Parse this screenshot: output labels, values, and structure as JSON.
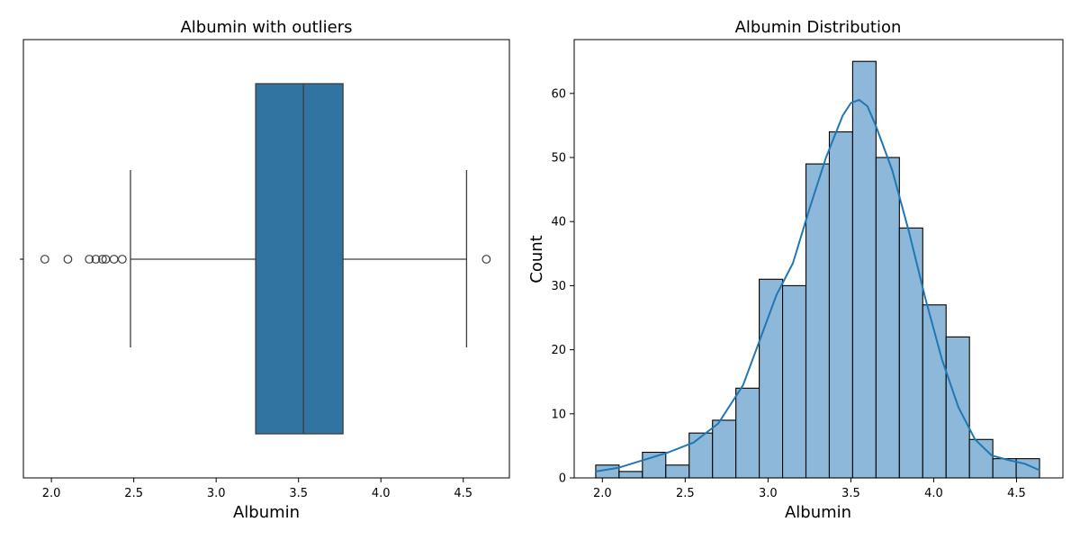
{
  "chart_data": [
    {
      "type": "box",
      "title": "Albumin with outliers",
      "xlabel": "Albumin",
      "ylabel": "",
      "xlim": [
        1.83,
        4.78
      ],
      "xticks": [
        2.0,
        2.5,
        3.0,
        3.5,
        4.0,
        4.5
      ],
      "xtick_labels": [
        "2.0",
        "2.5",
        "3.0",
        "3.5",
        "4.0",
        "4.5"
      ],
      "grid": false,
      "box": {
        "whisker_low": 2.48,
        "q1": 3.24,
        "median": 3.53,
        "q3": 3.77,
        "whisker_high": 4.52,
        "color": "#3274a1"
      },
      "outliers": [
        1.96,
        2.1,
        2.23,
        2.27,
        2.31,
        2.33,
        2.38,
        2.43,
        4.64
      ]
    },
    {
      "type": "histogram",
      "title": "Albumin Distribution",
      "xlabel": "Albumin",
      "ylabel": "Count",
      "xlim": [
        1.83,
        4.78
      ],
      "ylim": [
        0,
        68.4
      ],
      "xticks": [
        2.0,
        2.5,
        3.0,
        3.5,
        4.0,
        4.5
      ],
      "xtick_labels": [
        "2.0",
        "2.5",
        "3.0",
        "3.5",
        "4.0",
        "4.5"
      ],
      "yticks": [
        0,
        10,
        20,
        30,
        40,
        50,
        60
      ],
      "ytick_labels": [
        "0",
        "10",
        "20",
        "30",
        "40",
        "50",
        "60"
      ],
      "grid": false,
      "bar_color": "#8db8da",
      "line_color": "#1f77b4",
      "bin_edges": [
        1.96,
        2.101,
        2.242,
        2.383,
        2.524,
        2.665,
        2.806,
        2.947,
        3.088,
        3.229,
        3.37,
        3.511,
        3.652,
        3.793,
        3.934,
        4.075,
        4.216,
        4.357,
        4.498,
        4.639
      ],
      "counts": [
        2,
        1,
        4,
        2,
        7,
        9,
        14,
        31,
        30,
        49,
        54,
        65,
        50,
        39,
        27,
        22,
        6,
        3,
        3
      ],
      "kde": {
        "x": [
          1.96,
          2.1,
          2.25,
          2.4,
          2.55,
          2.7,
          2.85,
          2.95,
          3.05,
          3.15,
          3.25,
          3.35,
          3.45,
          3.5,
          3.55,
          3.6,
          3.65,
          3.75,
          3.85,
          3.95,
          4.05,
          4.15,
          4.25,
          4.35,
          4.45,
          4.55,
          4.64
        ],
        "y": [
          1,
          1.6,
          2.8,
          4.0,
          5.5,
          8.5,
          14.5,
          21.5,
          28.5,
          33.5,
          42,
          50,
          56.5,
          58.5,
          59,
          58,
          55,
          48,
          38.5,
          28,
          18.5,
          11,
          6,
          3.5,
          2.8,
          2.2,
          1.2
        ]
      }
    }
  ]
}
